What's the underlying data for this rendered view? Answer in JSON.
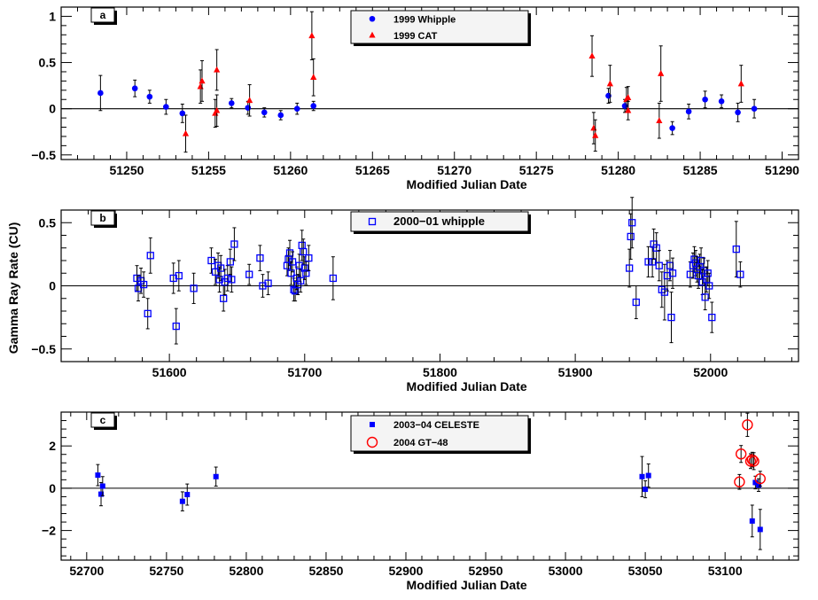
{
  "chart_data": [
    {
      "type": "scatter",
      "panel_label": "a",
      "xlabel": "Modified Julian Date",
      "ylabel": "",
      "xlim": [
        51246,
        51291
      ],
      "ylim": [
        -0.55,
        1.1
      ],
      "xticks": [
        51250,
        51255,
        51260,
        51265,
        51270,
        51275,
        51280,
        51285,
        51290
      ],
      "yticks": [
        -0.5,
        0,
        0.5,
        1
      ],
      "ytick_labels": [
        "−0.5",
        "0",
        "0.5",
        "1"
      ],
      "zero_line": true,
      "legend_position": "top-center",
      "series": [
        {
          "name": "1999  Whipple",
          "marker": "filled-circle",
          "color": "#0000ff",
          "points": [
            {
              "x": 51248.4,
              "y": 0.17,
              "err": 0.19
            },
            {
              "x": 51250.5,
              "y": 0.22,
              "err": 0.09
            },
            {
              "x": 51251.4,
              "y": 0.13,
              "err": 0.07
            },
            {
              "x": 51252.4,
              "y": 0.02,
              "err": 0.08
            },
            {
              "x": 51253.4,
              "y": -0.05,
              "err": 0.1
            },
            {
              "x": 51256.4,
              "y": 0.06,
              "err": 0.05
            },
            {
              "x": 51257.4,
              "y": 0.01,
              "err": 0.07
            },
            {
              "x": 51258.4,
              "y": -0.04,
              "err": 0.05
            },
            {
              "x": 51259.4,
              "y": -0.07,
              "err": 0.05
            },
            {
              "x": 51260.4,
              "y": 0.0,
              "err": 0.06
            },
            {
              "x": 51261.4,
              "y": 0.03,
              "err": 0.05
            },
            {
              "x": 51279.4,
              "y": 0.14,
              "err": 0.08
            },
            {
              "x": 51280.4,
              "y": 0.03,
              "err": 0.07
            },
            {
              "x": 51283.3,
              "y": -0.21,
              "err": 0.07
            },
            {
              "x": 51284.3,
              "y": -0.03,
              "err": 0.08
            },
            {
              "x": 51285.3,
              "y": 0.1,
              "err": 0.09
            },
            {
              "x": 51286.3,
              "y": 0.08,
              "err": 0.07
            },
            {
              "x": 51287.3,
              "y": -0.04,
              "err": 0.1
            },
            {
              "x": 51288.3,
              "y": 0.0,
              "err": 0.1
            }
          ]
        },
        {
          "name": "1999  CAT",
          "marker": "filled-triangle",
          "color": "#ff0000",
          "points": [
            {
              "x": 51253.6,
              "y": -0.27,
              "err": 0.2
            },
            {
              "x": 51254.5,
              "y": 0.24,
              "err": 0.18
            },
            {
              "x": 51254.6,
              "y": 0.3,
              "err": 0.22
            },
            {
              "x": 51255.4,
              "y": -0.05,
              "err": 0.15
            },
            {
              "x": 51255.5,
              "y": -0.02,
              "err": 0.17
            },
            {
              "x": 51255.5,
              "y": 0.42,
              "err": 0.22
            },
            {
              "x": 51257.5,
              "y": 0.09,
              "err": 0.17
            },
            {
              "x": 51261.3,
              "y": 0.79,
              "err": 0.26
            },
            {
              "x": 51261.4,
              "y": 0.34,
              "err": 0.2
            },
            {
              "x": 51278.4,
              "y": 0.57,
              "err": 0.22
            },
            {
              "x": 51278.5,
              "y": -0.21,
              "err": 0.17
            },
            {
              "x": 51278.6,
              "y": -0.29,
              "err": 0.17
            },
            {
              "x": 51279.5,
              "y": 0.27,
              "err": 0.2
            },
            {
              "x": 51280.5,
              "y": 0.1,
              "err": 0.13
            },
            {
              "x": 51280.6,
              "y": 0.12,
              "err": 0.12
            },
            {
              "x": 51280.6,
              "y": -0.02,
              "err": 0.1
            },
            {
              "x": 51282.5,
              "y": -0.13,
              "err": 0.19
            },
            {
              "x": 51282.6,
              "y": 0.38,
              "err": 0.3
            },
            {
              "x": 51287.5,
              "y": 0.27,
              "err": 0.2
            }
          ]
        }
      ]
    },
    {
      "type": "scatter",
      "panel_label": "b",
      "xlabel": "Modified Julian Date",
      "ylabel": "Gamma Ray Rate (CU)",
      "xlim": [
        51520,
        52065
      ],
      "ylim": [
        -0.6,
        0.6
      ],
      "xticks": [
        51600,
        51700,
        51800,
        51900,
        52000
      ],
      "yticks": [
        -0.5,
        0,
        0.5
      ],
      "ytick_labels": [
        "−0.5",
        "0",
        "0.5"
      ],
      "zero_line": true,
      "legend_position": "top-center",
      "series": [
        {
          "name": "2000−01  whipple",
          "marker": "open-square",
          "color": "#0000ff",
          "points": [
            {
              "x": 51576,
              "y": 0.06,
              "err": 0.1
            },
            {
              "x": 51577,
              "y": -0.02,
              "err": 0.1
            },
            {
              "x": 51579,
              "y": 0.04,
              "err": 0.1
            },
            {
              "x": 51581,
              "y": 0.01,
              "err": 0.1
            },
            {
              "x": 51584,
              "y": -0.22,
              "err": 0.12
            },
            {
              "x": 51586,
              "y": 0.24,
              "err": 0.14
            },
            {
              "x": 51603,
              "y": 0.06,
              "err": 0.12
            },
            {
              "x": 51605,
              "y": -0.32,
              "err": 0.14
            },
            {
              "x": 51607,
              "y": 0.08,
              "err": 0.12
            },
            {
              "x": 51618,
              "y": -0.02,
              "err": 0.12
            },
            {
              "x": 51631,
              "y": 0.2,
              "err": 0.1
            },
            {
              "x": 51634,
              "y": 0.11,
              "err": 0.1
            },
            {
              "x": 51636,
              "y": 0.16,
              "err": 0.1
            },
            {
              "x": 51637,
              "y": 0.05,
              "err": 0.1
            },
            {
              "x": 51638,
              "y": 0.14,
              "err": 0.1
            },
            {
              "x": 51640,
              "y": -0.1,
              "err": 0.1
            },
            {
              "x": 51641,
              "y": 0.03,
              "err": 0.1
            },
            {
              "x": 51643,
              "y": 0.06,
              "err": 0.1
            },
            {
              "x": 51645,
              "y": 0.19,
              "err": 0.1
            },
            {
              "x": 51646,
              "y": 0.05,
              "err": 0.1
            },
            {
              "x": 51648,
              "y": 0.33,
              "err": 0.13
            },
            {
              "x": 51659,
              "y": 0.09,
              "err": 0.08
            },
            {
              "x": 51667,
              "y": 0.22,
              "err": 0.1
            },
            {
              "x": 51669,
              "y": 0.0,
              "err": 0.09
            },
            {
              "x": 51673,
              "y": 0.02,
              "err": 0.09
            },
            {
              "x": 51687,
              "y": 0.16,
              "err": 0.08
            },
            {
              "x": 51688,
              "y": 0.21,
              "err": 0.09
            },
            {
              "x": 51689,
              "y": 0.26,
              "err": 0.1
            },
            {
              "x": 51690,
              "y": 0.1,
              "err": 0.09
            },
            {
              "x": 51691,
              "y": 0.19,
              "err": 0.08
            },
            {
              "x": 51692,
              "y": -0.03,
              "err": 0.09
            },
            {
              "x": 51693,
              "y": -0.04,
              "err": 0.08
            },
            {
              "x": 51694,
              "y": 0.06,
              "err": 0.09
            },
            {
              "x": 51695,
              "y": 0.01,
              "err": 0.08
            },
            {
              "x": 51696,
              "y": 0.16,
              "err": 0.09
            },
            {
              "x": 51697,
              "y": 0.04,
              "err": 0.09
            },
            {
              "x": 51698,
              "y": 0.32,
              "err": 0.12
            },
            {
              "x": 51699,
              "y": 0.27,
              "err": 0.1
            },
            {
              "x": 51700,
              "y": 0.14,
              "err": 0.09
            },
            {
              "x": 51701,
              "y": 0.1,
              "err": 0.09
            },
            {
              "x": 51703,
              "y": 0.22,
              "err": 0.1
            },
            {
              "x": 51721,
              "y": 0.06,
              "err": 0.17
            },
            {
              "x": 51940,
              "y": 0.14,
              "err": 0.15
            },
            {
              "x": 51941,
              "y": 0.39,
              "err": 0.18
            },
            {
              "x": 51942,
              "y": 0.5,
              "err": 0.2
            },
            {
              "x": 51945,
              "y": -0.13,
              "err": 0.13
            },
            {
              "x": 51954,
              "y": 0.19,
              "err": 0.12
            },
            {
              "x": 51957,
              "y": 0.19,
              "err": 0.12
            },
            {
              "x": 51958,
              "y": 0.33,
              "err": 0.12
            },
            {
              "x": 51960,
              "y": 0.3,
              "err": 0.12
            },
            {
              "x": 51962,
              "y": 0.16,
              "err": 0.12
            },
            {
              "x": 51964,
              "y": -0.03,
              "err": 0.14
            },
            {
              "x": 51966,
              "y": -0.05,
              "err": 0.22
            },
            {
              "x": 51968,
              "y": 0.08,
              "err": 0.12
            },
            {
              "x": 51970,
              "y": 0.16,
              "err": 0.12
            },
            {
              "x": 51971,
              "y": -0.25,
              "err": 0.2
            },
            {
              "x": 51972,
              "y": 0.1,
              "err": 0.12
            },
            {
              "x": 51985,
              "y": 0.09,
              "err": 0.1
            },
            {
              "x": 51987,
              "y": 0.16,
              "err": 0.1
            },
            {
              "x": 51988,
              "y": 0.21,
              "err": 0.1
            },
            {
              "x": 51989,
              "y": 0.18,
              "err": 0.1
            },
            {
              "x": 51990,
              "y": 0.13,
              "err": 0.1
            },
            {
              "x": 51991,
              "y": 0.08,
              "err": 0.1
            },
            {
              "x": 51992,
              "y": 0.15,
              "err": 0.1
            },
            {
              "x": 51993,
              "y": 0.2,
              "err": 0.1
            },
            {
              "x": 51994,
              "y": 0.03,
              "err": 0.1
            },
            {
              "x": 51995,
              "y": 0.12,
              "err": 0.1
            },
            {
              "x": 51996,
              "y": -0.09,
              "err": 0.1
            },
            {
              "x": 51997,
              "y": 0.05,
              "err": 0.1
            },
            {
              "x": 51998,
              "y": 0.1,
              "err": 0.1
            },
            {
              "x": 51999,
              "y": 0.0,
              "err": 0.1
            },
            {
              "x": 52001,
              "y": -0.25,
              "err": 0.12
            },
            {
              "x": 52019,
              "y": 0.29,
              "err": 0.22
            },
            {
              "x": 52022,
              "y": 0.09,
              "err": 0.1
            }
          ]
        }
      ]
    },
    {
      "type": "scatter",
      "panel_label": "c",
      "xlabel": "Modified Julian Date",
      "ylabel": "",
      "xlim": [
        52684,
        53146
      ],
      "ylim": [
        -3.4,
        3.6
      ],
      "xticks": [
        52700,
        52750,
        52800,
        52850,
        52900,
        52950,
        53000,
        53050,
        53100
      ],
      "yticks": [
        -2,
        0,
        2
      ],
      "ytick_labels": [
        "−2",
        "0",
        "2"
      ],
      "zero_line": true,
      "legend_position": "top-center",
      "series": [
        {
          "name": "2003−04  CELESTE",
          "marker": "filled-square",
          "color": "#0000ff",
          "points": [
            {
              "x": 52707,
              "y": 0.62,
              "err": 0.5
            },
            {
              "x": 52709,
              "y": -0.28,
              "err": 0.55
            },
            {
              "x": 52710,
              "y": 0.1,
              "err": 0.45
            },
            {
              "x": 52760,
              "y": -0.62,
              "err": 0.45
            },
            {
              "x": 52763,
              "y": -0.3,
              "err": 0.5
            },
            {
              "x": 52781,
              "y": 0.55,
              "err": 0.45
            },
            {
              "x": 53048,
              "y": 0.55,
              "err": 0.95
            },
            {
              "x": 53050,
              "y": -0.05,
              "err": 0.4
            },
            {
              "x": 53052,
              "y": 0.6,
              "err": 0.55
            },
            {
              "x": 53119,
              "y": 0.27,
              "err": 0.3
            },
            {
              "x": 53117,
              "y": -1.55,
              "err": 0.75
            },
            {
              "x": 53121,
              "y": 0.15,
              "err": 0.3
            },
            {
              "x": 53122,
              "y": -1.95,
              "err": 0.95
            }
          ]
        },
        {
          "name": "2004  GT−48",
          "marker": "open-circle",
          "color": "#ff0000",
          "points": [
            {
              "x": 53109,
              "y": 0.3,
              "err": 0.35
            },
            {
              "x": 53110,
              "y": 1.62,
              "err": 0.4
            },
            {
              "x": 53114,
              "y": 3.0,
              "err": 0.55
            },
            {
              "x": 53116,
              "y": 1.28,
              "err": 0.35
            },
            {
              "x": 53117,
              "y": 1.35,
              "err": 0.35
            },
            {
              "x": 53118,
              "y": 1.28,
              "err": 0.4
            },
            {
              "x": 53122,
              "y": 0.45,
              "err": 0.35
            }
          ]
        }
      ]
    }
  ]
}
